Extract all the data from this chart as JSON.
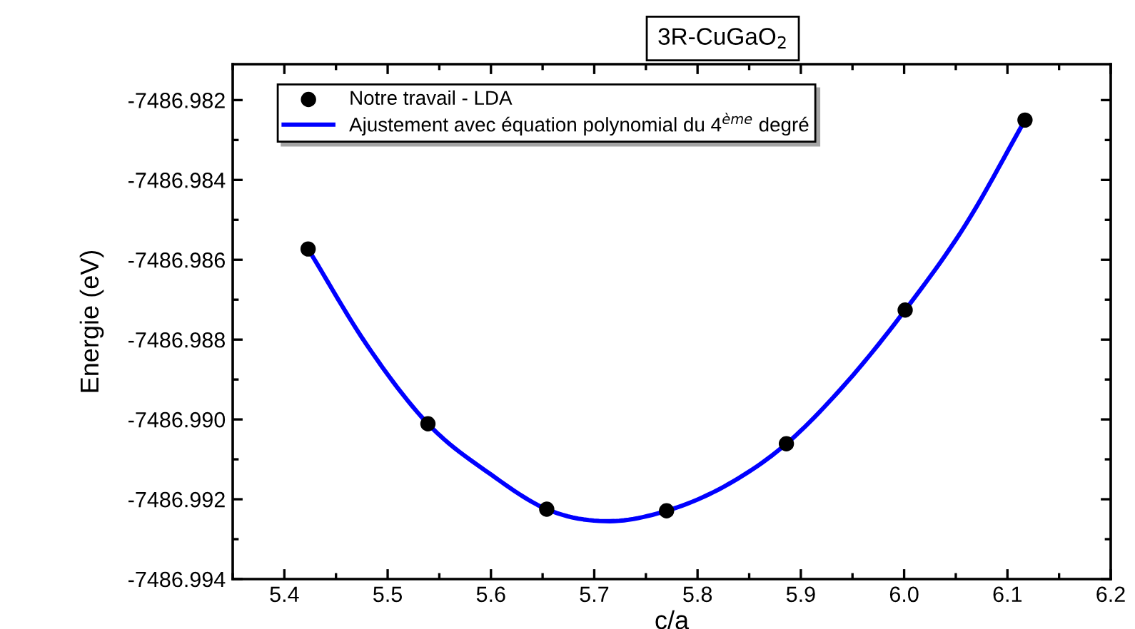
{
  "chart_data": {
    "type": "scatter",
    "title": "3R-CuGaO$_{2}$",
    "xlabel": "c/a",
    "ylabel": "Energie (eV)",
    "xlim": [
      5.35,
      6.2
    ],
    "xticks": [
      5.4,
      5.5,
      5.6,
      5.7,
      5.8,
      5.9,
      {
        "value": 6.0,
        "label": "6.0"
      },
      6.1,
      6.2
    ],
    "ylim": [
      -7486.994,
      -7486.9811
    ],
    "yticks": [
      -7486.994,
      -7486.992,
      {
        "value": -7486.99,
        "label": "-7486.990"
      },
      -7486.988,
      -7486.986,
      -7486.984,
      -7486.982
    ],
    "legend": "top left",
    "grid": false,
    "series": [
      {
        "name": "Notre travail - LDA",
        "marker": "circle",
        "color": "#000000",
        "x": [
          5.423,
          5.539,
          5.654,
          5.77,
          5.886,
          6.001,
          6.117
        ],
        "values": [
          -7486.98573,
          -7486.99011,
          -7486.99225,
          -7486.99229,
          -7486.99061,
          -7486.98726,
          -7486.9825
        ]
      },
      {
        "name": "Ajustement avec équation polynomial du 4$^{ème}$ degré",
        "type": "line",
        "marker": "none",
        "line_style": "solid",
        "color": "#0000ff",
        "x": [
          5.423,
          5.48,
          5.539,
          5.6,
          5.654,
          5.715,
          5.77,
          5.83,
          5.886,
          5.94,
          6.001,
          6.06,
          6.117
        ],
        "values": [
          -7486.98573,
          -7486.98814,
          -7486.99011,
          -7486.99138,
          -7486.99225,
          -7486.99255,
          -7486.99229,
          -7486.99162,
          -7486.99061,
          -7486.9892,
          -7486.98726,
          -7486.9851,
          -7486.9825
        ]
      }
    ]
  }
}
